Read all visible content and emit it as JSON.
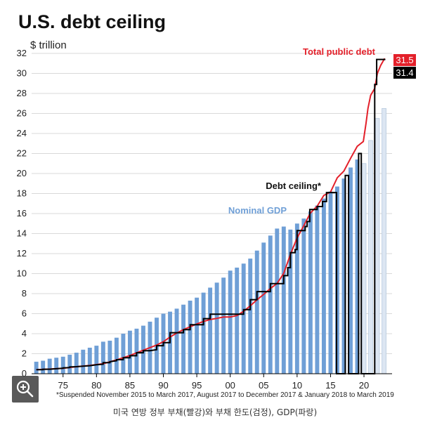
{
  "chart_data": {
    "type": "bar",
    "title": "U.S. debt ceiling",
    "ylabel": "$ trillion",
    "ylim": [
      0,
      32
    ],
    "yticks": [
      0,
      2,
      4,
      6,
      8,
      10,
      12,
      14,
      16,
      18,
      20,
      22,
      24,
      26,
      28,
      30,
      32
    ],
    "xticks": [
      {
        "year": 1975,
        "label": "75"
      },
      {
        "year": 1980,
        "label": "80"
      },
      {
        "year": 1985,
        "label": "85"
      },
      {
        "year": 1990,
        "label": "90"
      },
      {
        "year": 1995,
        "label": "95"
      },
      {
        "year": 2000,
        "label": "00"
      },
      {
        "year": 2005,
        "label": "05"
      },
      {
        "year": 2010,
        "label": "10"
      },
      {
        "year": 2015,
        "label": "15"
      },
      {
        "year": 2020,
        "label": "20"
      }
    ],
    "gdp": {
      "name": "Nominal GDP",
      "color": "#6f9fd6",
      "projected_color": "#dce6f2",
      "years": [
        1971,
        1972,
        1973,
        1974,
        1975,
        1976,
        1977,
        1978,
        1979,
        1980,
        1981,
        1982,
        1983,
        1984,
        1985,
        1986,
        1987,
        1988,
        1989,
        1990,
        1991,
        1992,
        1993,
        1994,
        1995,
        1996,
        1997,
        1998,
        1999,
        2000,
        2001,
        2002,
        2003,
        2004,
        2005,
        2006,
        2007,
        2008,
        2009,
        2010,
        2011,
        2012,
        2013,
        2014,
        2015,
        2016,
        2017,
        2018,
        2019,
        2020,
        2021,
        2022,
        2023
      ],
      "values": [
        1.2,
        1.3,
        1.5,
        1.6,
        1.7,
        1.9,
        2.1,
        2.4,
        2.6,
        2.8,
        3.2,
        3.3,
        3.6,
        4.0,
        4.3,
        4.5,
        4.8,
        5.2,
        5.6,
        6.0,
        6.2,
        6.5,
        6.9,
        7.3,
        7.6,
        8.1,
        8.6,
        9.1,
        9.6,
        10.3,
        10.6,
        11.0,
        11.5,
        12.3,
        13.1,
        13.8,
        14.5,
        14.7,
        14.4,
        15.0,
        15.5,
        16.2,
        16.8,
        17.5,
        18.2,
        18.7,
        19.5,
        20.6,
        21.4,
        21.0,
        23.3,
        25.5,
        26.5
      ],
      "projected_from": 2020
    },
    "debt_ceiling": {
      "name": "Debt ceiling*",
      "color": "#000000",
      "final_value": 31.4,
      "points": [
        [
          1971,
          0.4
        ],
        [
          1972,
          0.4
        ],
        [
          1972,
          0.45
        ],
        [
          1973,
          0.45
        ],
        [
          1974,
          0.5
        ],
        [
          1975,
          0.55
        ],
        [
          1975,
          0.58
        ],
        [
          1976,
          0.62
        ],
        [
          1976,
          0.68
        ],
        [
          1977,
          0.7
        ],
        [
          1978,
          0.75
        ],
        [
          1979,
          0.8
        ],
        [
          1980,
          0.9
        ],
        [
          1981,
          0.95
        ],
        [
          1981,
          1.1
        ],
        [
          1982,
          1.1
        ],
        [
          1982,
          1.2
        ],
        [
          1983,
          1.3
        ],
        [
          1983,
          1.4
        ],
        [
          1984,
          1.4
        ],
        [
          1984,
          1.6
        ],
        [
          1985,
          1.6
        ],
        [
          1985,
          1.8
        ],
        [
          1986,
          1.8
        ],
        [
          1986,
          2.1
        ],
        [
          1987,
          2.1
        ],
        [
          1987,
          2.3
        ],
        [
          1988,
          2.3
        ],
        [
          1989,
          2.4
        ],
        [
          1989,
          2.8
        ],
        [
          1990,
          2.8
        ],
        [
          1990,
          3.1
        ],
        [
          1991,
          3.1
        ],
        [
          1991,
          4.1
        ],
        [
          1993,
          4.1
        ],
        [
          1993,
          4.4
        ],
        [
          1994,
          4.4
        ],
        [
          1994,
          4.9
        ],
        [
          1996,
          4.9
        ],
        [
          1996,
          5.5
        ],
        [
          1997,
          5.5
        ],
        [
          1997,
          5.95
        ],
        [
          2002,
          5.95
        ],
        [
          2002,
          6.4
        ],
        [
          2003,
          6.4
        ],
        [
          2003,
          7.4
        ],
        [
          2004,
          7.4
        ],
        [
          2004,
          8.2
        ],
        [
          2006,
          8.2
        ],
        [
          2006,
          9.0
        ],
        [
          2008,
          9.0
        ],
        [
          2008,
          9.8
        ],
        [
          2008.6,
          9.8
        ],
        [
          2008.6,
          10.6
        ],
        [
          2009,
          10.6
        ],
        [
          2009,
          12.1
        ],
        [
          2009.7,
          12.1
        ],
        [
          2009.7,
          12.4
        ],
        [
          2010,
          12.4
        ],
        [
          2010,
          14.3
        ],
        [
          2011.2,
          14.3
        ],
        [
          2011.2,
          14.7
        ],
        [
          2011.5,
          14.7
        ],
        [
          2011.5,
          15.2
        ],
        [
          2011.9,
          15.2
        ],
        [
          2011.9,
          16.4
        ],
        [
          2013,
          16.4
        ],
        [
          2013,
          16.7
        ],
        [
          2013.8,
          16.7
        ],
        [
          2013.8,
          17.2
        ],
        [
          2014.4,
          17.2
        ],
        [
          2014.4,
          18.1
        ],
        [
          2015.9,
          18.1
        ],
        [
          2015.9,
          0
        ],
        [
          2017.2,
          0
        ],
        [
          2017.2,
          19.8
        ],
        [
          2017.7,
          19.8
        ],
        [
          2017.7,
          0
        ],
        [
          2019.2,
          0
        ],
        [
          2019.2,
          22.0
        ],
        [
          2019.6,
          22.0
        ],
        [
          2019.6,
          0
        ],
        [
          2021.6,
          0
        ],
        [
          2021.6,
          28.9
        ],
        [
          2021.9,
          28.9
        ],
        [
          2021.9,
          31.4
        ],
        [
          2023.2,
          31.4
        ]
      ]
    },
    "public_debt": {
      "name": "Total public debt",
      "color": "#e3202a",
      "final_value": 31.5,
      "points": [
        [
          1971,
          0.4
        ],
        [
          1973,
          0.46
        ],
        [
          1975,
          0.54
        ],
        [
          1977,
          0.7
        ],
        [
          1979,
          0.83
        ],
        [
          1981,
          1.0
        ],
        [
          1983,
          1.38
        ],
        [
          1985,
          1.82
        ],
        [
          1987,
          2.35
        ],
        [
          1989,
          2.86
        ],
        [
          1990,
          3.2
        ],
        [
          1991,
          3.66
        ],
        [
          1992,
          4.06
        ],
        [
          1993,
          4.41
        ],
        [
          1994,
          4.69
        ],
        [
          1995,
          4.97
        ],
        [
          1996,
          5.22
        ],
        [
          1997,
          5.41
        ],
        [
          1998,
          5.53
        ],
        [
          1999,
          5.66
        ],
        [
          2000,
          5.67
        ],
        [
          2001,
          5.81
        ],
        [
          2002,
          6.23
        ],
        [
          2003,
          6.78
        ],
        [
          2004,
          7.38
        ],
        [
          2005,
          7.93
        ],
        [
          2006,
          8.51
        ],
        [
          2007,
          9.01
        ],
        [
          2008,
          10.02
        ],
        [
          2009,
          11.91
        ],
        [
          2010,
          13.56
        ],
        [
          2011,
          14.79
        ],
        [
          2012,
          16.07
        ],
        [
          2013,
          16.74
        ],
        [
          2014,
          17.82
        ],
        [
          2015,
          18.15
        ],
        [
          2016,
          19.57
        ],
        [
          2017,
          20.25
        ],
        [
          2018,
          21.52
        ],
        [
          2019,
          22.72
        ],
        [
          2019.9,
          23.2
        ],
        [
          2020.3,
          25.0
        ],
        [
          2020.6,
          26.5
        ],
        [
          2021,
          27.8
        ],
        [
          2021.6,
          28.5
        ],
        [
          2022,
          30.0
        ],
        [
          2022.5,
          30.8
        ],
        [
          2023.1,
          31.5
        ]
      ]
    },
    "annotations": [
      {
        "key": "public_debt_label",
        "text": "Total public debt"
      },
      {
        "key": "ceiling_label",
        "text": "Debt ceiling*"
      },
      {
        "key": "gdp_label",
        "text": "Nominal GDP"
      },
      {
        "key": "badge_debt",
        "text": "31.5"
      },
      {
        "key": "badge_ceiling",
        "text": "31.4"
      }
    ],
    "footnote": "*Suspended November 2015 to March 2017, August 2017 to December 2017 & January 2018 to March 2019"
  },
  "caption": "미국 연방 정부 부채(빨강)와 부채 한도(검정), GDP(파랑)",
  "zoom_button": {
    "icon": "zoom-in-icon"
  }
}
